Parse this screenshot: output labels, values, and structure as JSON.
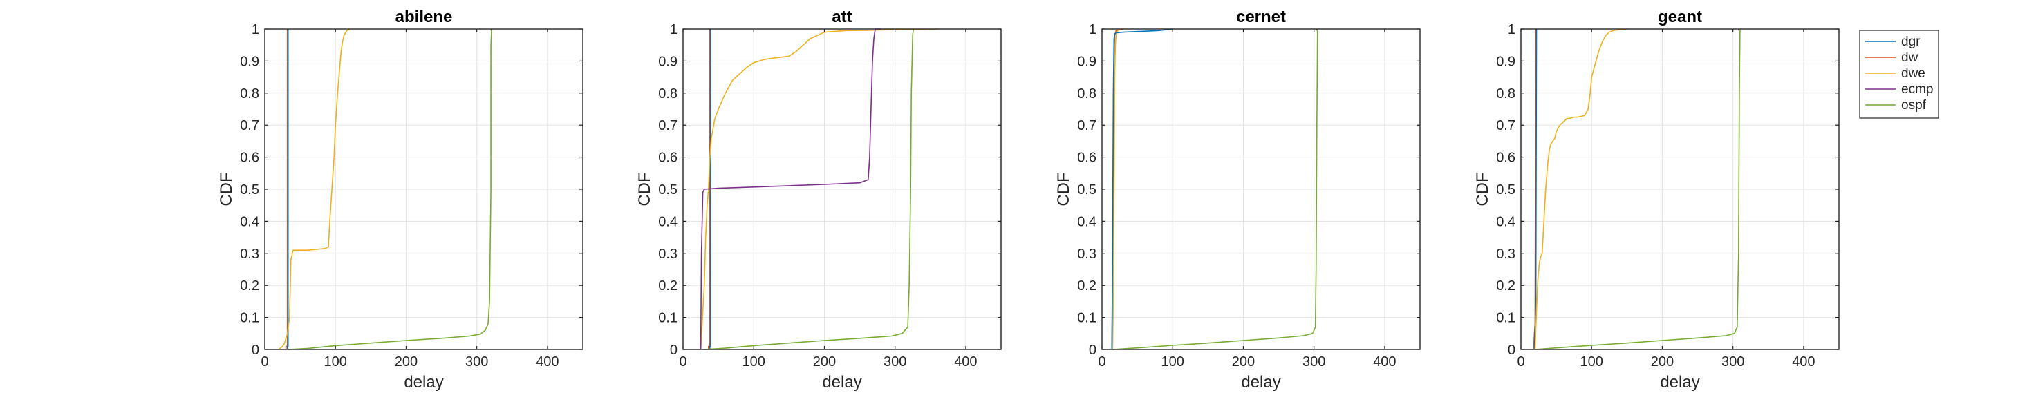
{
  "legend": {
    "position": "outside-right",
    "entries": [
      {
        "name": "dgr",
        "color": "#0072BD"
      },
      {
        "name": "dw",
        "color": "#D95319"
      },
      {
        "name": "dwe",
        "color": "#EDB120"
      },
      {
        "name": "ecmp",
        "color": "#7E2F8E"
      },
      {
        "name": "ospf",
        "color": "#77AC30"
      }
    ]
  },
  "chart_data": [
    {
      "type": "line",
      "title": "abilene",
      "xlabel": "delay",
      "ylabel": "CDF",
      "xlim": [
        0,
        450
      ],
      "ylim": [
        0,
        1
      ],
      "xticks": [
        0,
        100,
        200,
        300,
        400
      ],
      "yticks": [
        0,
        0.1,
        0.2,
        0.3,
        0.4,
        0.5,
        0.6,
        0.7,
        0.8,
        0.9,
        1
      ],
      "grid": true,
      "series": [
        {
          "name": "dw",
          "color": "#D95319",
          "x": [
            30,
            30,
            32,
            32
          ],
          "y": [
            0,
            0.01,
            0.01,
            1
          ]
        },
        {
          "name": "dgr",
          "color": "#0072BD",
          "x": [
            32,
            32,
            33,
            33
          ],
          "y": [
            0,
            0.01,
            0.01,
            1
          ]
        },
        {
          "name": "dwe",
          "color": "#EDB120",
          "x": [
            20,
            25,
            28,
            32,
            35,
            37,
            40,
            60,
            85,
            90,
            92,
            95,
            98,
            100,
            103,
            106,
            108,
            110,
            112,
            116,
            120
          ],
          "y": [
            0,
            0.01,
            0.02,
            0.05,
            0.1,
            0.28,
            0.31,
            0.31,
            0.315,
            0.32,
            0.4,
            0.5,
            0.6,
            0.7,
            0.8,
            0.88,
            0.93,
            0.96,
            0.98,
            0.995,
            1
          ]
        },
        {
          "name": "ecmp",
          "color": "#7E2F8E",
          "x": [
            320,
            321
          ],
          "y": [
            0.995,
            1
          ]
        },
        {
          "name": "ospf",
          "color": "#77AC30",
          "x": [
            33,
            60,
            100,
            150,
            200,
            250,
            290,
            305,
            312,
            316,
            318,
            320,
            320,
            321
          ],
          "y": [
            0,
            0.003,
            0.012,
            0.02,
            0.028,
            0.035,
            0.042,
            0.048,
            0.06,
            0.08,
            0.15,
            0.5,
            0.95,
            1
          ]
        }
      ]
    },
    {
      "type": "line",
      "title": "att",
      "xlabel": "delay",
      "ylabel": "CDF",
      "xlim": [
        0,
        450
      ],
      "ylim": [
        0,
        1
      ],
      "xticks": [
        0,
        100,
        200,
        300,
        400
      ],
      "yticks": [
        0,
        0.1,
        0.2,
        0.3,
        0.4,
        0.5,
        0.6,
        0.7,
        0.8,
        0.9,
        1
      ],
      "grid": true,
      "series": [
        {
          "name": "dw",
          "color": "#D95319",
          "x": [
            36,
            36,
            38,
            38
          ],
          "y": [
            0,
            0.01,
            0.01,
            1
          ]
        },
        {
          "name": "dgr",
          "color": "#0072BD",
          "x": [
            38,
            38,
            39,
            39
          ],
          "y": [
            0,
            0.01,
            0.01,
            1
          ]
        },
        {
          "name": "dwe",
          "color": "#EDB120",
          "x": [
            25,
            30,
            32,
            34,
            36,
            38,
            40,
            45,
            50,
            60,
            70,
            80,
            90,
            100,
            115,
            130,
            150,
            160,
            170,
            180,
            190,
            200,
            230,
            260,
            280,
            300,
            320,
            340,
            362
          ],
          "y": [
            0,
            0.2,
            0.35,
            0.45,
            0.5,
            0.6,
            0.66,
            0.72,
            0.75,
            0.8,
            0.84,
            0.86,
            0.88,
            0.895,
            0.905,
            0.91,
            0.915,
            0.93,
            0.95,
            0.97,
            0.98,
            0.99,
            0.995,
            0.996,
            0.997,
            0.998,
            0.999,
            0.999,
            1
          ]
        },
        {
          "name": "ecmp",
          "color": "#7E2F8E",
          "x": [
            25,
            26,
            28,
            30,
            50,
            100,
            150,
            200,
            250,
            262,
            264,
            266,
            268,
            270,
            272,
            280
          ],
          "y": [
            0,
            0.3,
            0.49,
            0.5,
            0.503,
            0.507,
            0.511,
            0.515,
            0.52,
            0.53,
            0.6,
            0.75,
            0.9,
            0.97,
            1,
            1
          ]
        },
        {
          "name": "ospf",
          "color": "#77AC30",
          "x": [
            30,
            60,
            100,
            150,
            200,
            250,
            295,
            310,
            318,
            320,
            322,
            323,
            325,
            326
          ],
          "y": [
            0,
            0.004,
            0.012,
            0.02,
            0.028,
            0.035,
            0.042,
            0.05,
            0.07,
            0.2,
            0.5,
            0.8,
            0.98,
            1
          ]
        }
      ]
    },
    {
      "type": "line",
      "title": "cernet",
      "xlabel": "delay",
      "ylabel": "CDF",
      "xlim": [
        0,
        450
      ],
      "ylim": [
        0,
        1
      ],
      "xticks": [
        0,
        100,
        200,
        300,
        400
      ],
      "yticks": [
        0,
        0.1,
        0.2,
        0.3,
        0.4,
        0.5,
        0.6,
        0.7,
        0.8,
        0.9,
        1
      ],
      "grid": true,
      "series": [
        {
          "name": "dw",
          "color": "#D95319",
          "x": [
            14,
            15,
            16,
            17,
            18,
            20,
            30
          ],
          "y": [
            0,
            0.2,
            0.6,
            0.9,
            0.98,
            0.995,
            1
          ]
        },
        {
          "name": "dwe",
          "color": "#EDB120",
          "x": [
            15,
            16,
            17,
            18,
            19,
            20,
            22,
            26
          ],
          "y": [
            0,
            0.15,
            0.5,
            0.85,
            0.95,
            0.98,
            0.995,
            1
          ]
        },
        {
          "name": "dgr",
          "color": "#0072BD",
          "x": [
            14,
            15,
            16,
            17,
            18,
            20,
            30,
            50,
            80,
            100
          ],
          "y": [
            0,
            0.3,
            0.8,
            0.97,
            0.985,
            0.988,
            0.99,
            0.992,
            0.995,
            1
          ]
        },
        {
          "name": "ecmp",
          "color": "#7E2F8E",
          "x": [
            303,
            304
          ],
          "y": [
            0.995,
            1
          ]
        },
        {
          "name": "ospf",
          "color": "#77AC30",
          "x": [
            15,
            50,
            100,
            150,
            200,
            250,
            285,
            298,
            302,
            303,
            304,
            305
          ],
          "y": [
            0,
            0.005,
            0.013,
            0.02,
            0.028,
            0.036,
            0.043,
            0.05,
            0.07,
            0.25,
            0.7,
            1
          ]
        }
      ]
    },
    {
      "type": "line",
      "title": "geant",
      "xlabel": "delay",
      "ylabel": "CDF",
      "xlim": [
        0,
        450
      ],
      "ylim": [
        0,
        1
      ],
      "xticks": [
        0,
        100,
        200,
        300,
        400
      ],
      "yticks": [
        0,
        0.1,
        0.2,
        0.3,
        0.4,
        0.5,
        0.6,
        0.7,
        0.8,
        0.9,
        1
      ],
      "grid": true,
      "series": [
        {
          "name": "dw",
          "color": "#D95319",
          "x": [
            18,
            19,
            20,
            21
          ],
          "y": [
            0,
            0.05,
            0.08,
            1
          ]
        },
        {
          "name": "dgr",
          "color": "#0072BD",
          "x": [
            19,
            20,
            21,
            22
          ],
          "y": [
            0,
            0.06,
            0.08,
            1
          ]
        },
        {
          "name": "dwe",
          "color": "#EDB120",
          "x": [
            20,
            22,
            24,
            26,
            28,
            30,
            32,
            35,
            38,
            40,
            42,
            45,
            48,
            50,
            55,
            60,
            65,
            70,
            75,
            80,
            90,
            95,
            98,
            100,
            105,
            110,
            115,
            120,
            125,
            130,
            140,
            150
          ],
          "y": [
            0,
            0.12,
            0.22,
            0.27,
            0.29,
            0.3,
            0.38,
            0.5,
            0.58,
            0.62,
            0.64,
            0.65,
            0.66,
            0.68,
            0.7,
            0.71,
            0.72,
            0.722,
            0.725,
            0.725,
            0.73,
            0.75,
            0.8,
            0.85,
            0.89,
            0.93,
            0.96,
            0.98,
            0.99,
            0.995,
            0.998,
            1
          ]
        },
        {
          "name": "ecmp",
          "color": "#7E2F8E",
          "x": [
            308,
            309
          ],
          "y": [
            0.995,
            1
          ]
        },
        {
          "name": "ospf",
          "color": "#77AC30",
          "x": [
            20,
            50,
            100,
            150,
            200,
            250,
            290,
            302,
            306,
            308,
            309,
            310
          ],
          "y": [
            0,
            0.005,
            0.013,
            0.02,
            0.028,
            0.036,
            0.043,
            0.05,
            0.07,
            0.3,
            0.8,
            1
          ]
        }
      ]
    }
  ]
}
